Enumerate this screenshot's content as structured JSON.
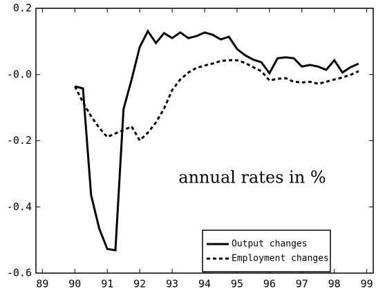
{
  "chart_data": {
    "type": "line",
    "annotation": "annual rates in %",
    "x": [
      90,
      90.25,
      90.5,
      90.75,
      91,
      91.25,
      91.5,
      91.75,
      92,
      92.25,
      92.5,
      92.75,
      93,
      93.25,
      93.5,
      93.75,
      94,
      94.25,
      94.5,
      94.75,
      95,
      95.25,
      95.5,
      95.75,
      96,
      96.25,
      96.5,
      96.75,
      97,
      97.25,
      97.5,
      97.75,
      98,
      98.25,
      98.5,
      98.75
    ],
    "series": [
      {
        "name": "Output changes",
        "color": "#000000",
        "dash": "solid",
        "values": [
          -0.036,
          -0.042,
          -0.364,
          -0.465,
          -0.527,
          -0.531,
          -0.105,
          -0.015,
          0.083,
          0.131,
          0.095,
          0.125,
          0.11,
          0.127,
          0.11,
          0.116,
          0.127,
          0.12,
          0.106,
          0.114,
          0.077,
          0.058,
          0.045,
          0.037,
          0.004,
          0.049,
          0.052,
          0.049,
          0.024,
          0.029,
          0.024,
          0.014,
          0.043,
          0.006,
          0.022,
          0.033
        ]
      },
      {
        "name": "Employment changes",
        "color": "#000000",
        "dash": "dashed",
        "values": [
          -0.036,
          -0.084,
          -0.126,
          -0.161,
          -0.189,
          -0.178,
          -0.168,
          -0.157,
          -0.199,
          -0.176,
          -0.145,
          -0.103,
          -0.047,
          -0.015,
          0.006,
          0.02,
          0.027,
          0.033,
          0.041,
          0.043,
          0.043,
          0.035,
          0.022,
          0.01,
          -0.018,
          -0.013,
          -0.011,
          -0.022,
          -0.024,
          -0.022,
          -0.028,
          -0.022,
          -0.015,
          -0.009,
          -0.001,
          0.01
        ]
      }
    ],
    "xlim": [
      88.8,
      99.2
    ],
    "xticks": [
      89,
      90,
      91,
      92,
      93,
      94,
      95,
      96,
      97,
      98,
      99
    ],
    "ylim": [
      -0.6,
      0.2
    ],
    "yticks": [
      -0.6,
      -0.4,
      -0.2,
      {
        "value": 0,
        "label": "-0.0"
      },
      0.2
    ],
    "grid": false,
    "legend": "lower right"
  }
}
